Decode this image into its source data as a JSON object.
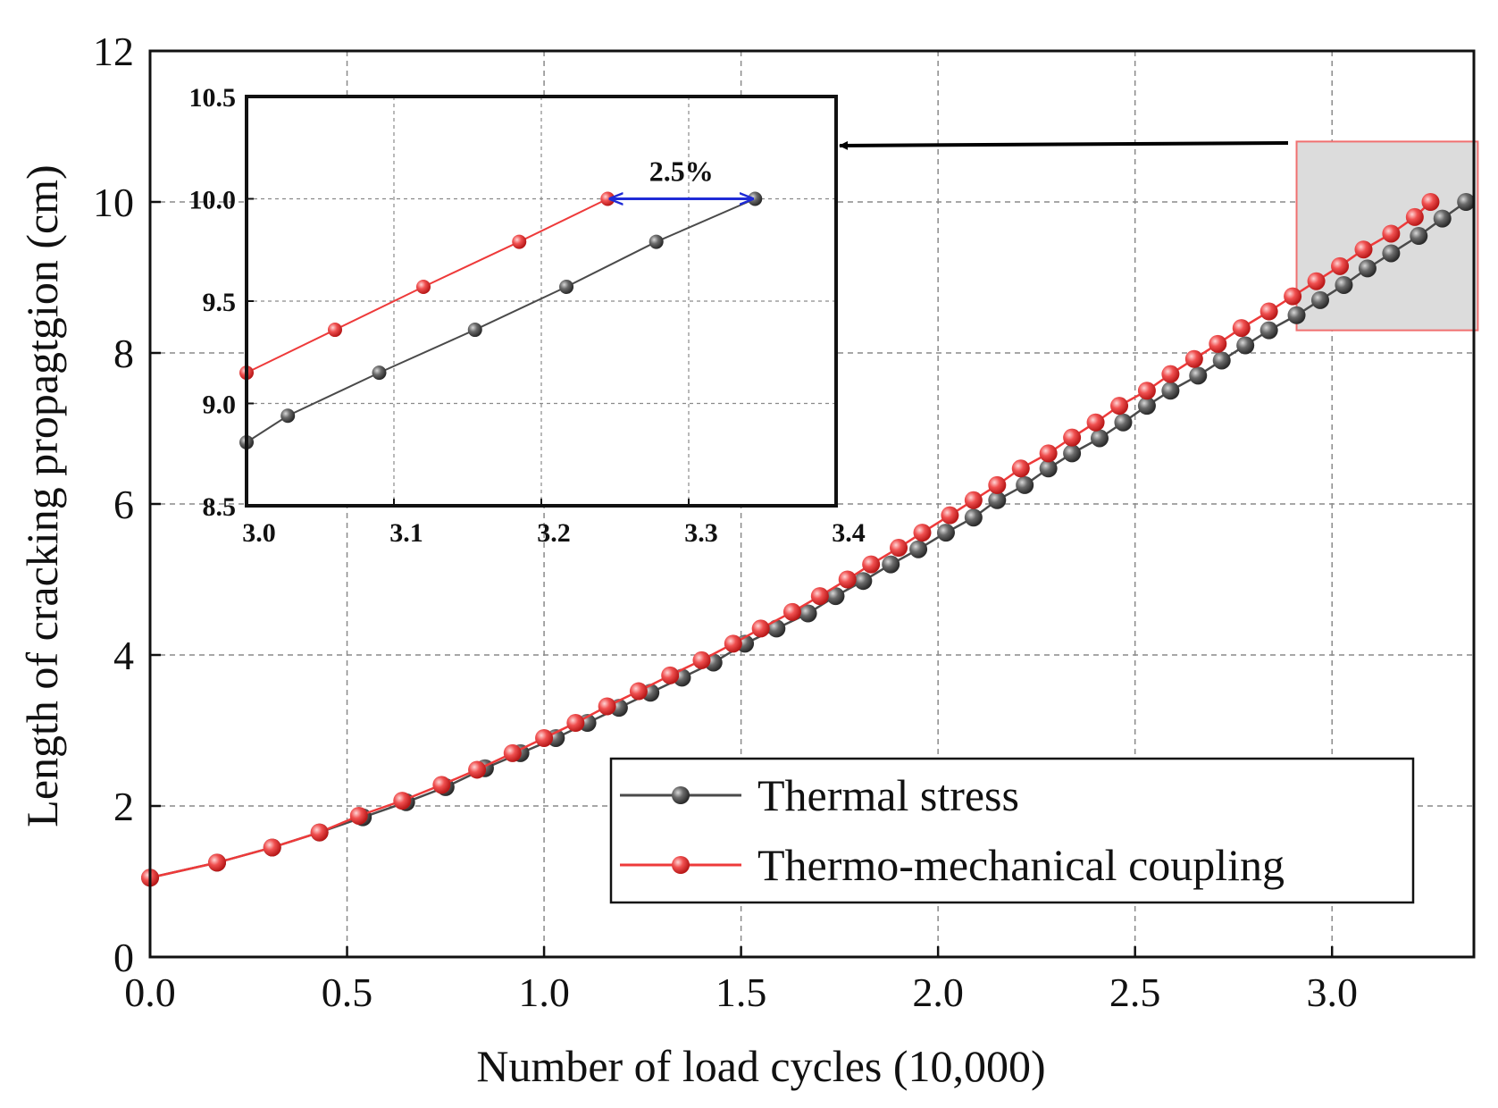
{
  "chart_data": [
    {
      "id": "main",
      "type": "line",
      "xlabel": "Number of load cycles (10,000)",
      "ylabel": "Length of cracking propagtgion (cm)",
      "xlim": [
        0,
        3.36
      ],
      "ylim": [
        0,
        12
      ],
      "xticks": [
        "0.0",
        "0.5",
        "1.0",
        "1.5",
        "2.0",
        "2.5",
        "3.0"
      ],
      "yticks": [
        "0",
        "2",
        "4",
        "6",
        "8",
        "10",
        "12"
      ],
      "grid": true,
      "legend_position": "bottom-right",
      "series": [
        {
          "name": "Thermal stress",
          "color": "#4a4a4a",
          "x": [
            0.0,
            0.17,
            0.31,
            0.43,
            0.54,
            0.65,
            0.75,
            0.85,
            0.94,
            1.03,
            1.11,
            1.19,
            1.27,
            1.35,
            1.43,
            1.51,
            1.59,
            1.67,
            1.74,
            1.81,
            1.88,
            1.95,
            2.02,
            2.09,
            2.15,
            2.22,
            2.28,
            2.34,
            2.41,
            2.47,
            2.53,
            2.59,
            2.66,
            2.72,
            2.78,
            2.84,
            2.91,
            2.97,
            3.03,
            3.09,
            3.15,
            3.22,
            3.28,
            3.34
          ],
          "y": [
            1.05,
            1.25,
            1.45,
            1.65,
            1.85,
            2.05,
            2.25,
            2.5,
            2.7,
            2.9,
            3.1,
            3.3,
            3.5,
            3.7,
            3.9,
            4.15,
            4.35,
            4.55,
            4.78,
            4.98,
            5.2,
            5.4,
            5.62,
            5.82,
            6.05,
            6.25,
            6.47,
            6.67,
            6.87,
            7.08,
            7.3,
            7.5,
            7.7,
            7.9,
            8.1,
            8.3,
            8.5,
            8.7,
            8.9,
            9.12,
            9.32,
            9.55,
            9.78,
            10.0
          ]
        },
        {
          "name": "Thermo-mechanical coupling",
          "color": "#ee3a3a",
          "x": [
            0.0,
            0.17,
            0.31,
            0.43,
            0.53,
            0.64,
            0.74,
            0.83,
            0.92,
            1.0,
            1.08,
            1.16,
            1.24,
            1.32,
            1.4,
            1.48,
            1.55,
            1.63,
            1.7,
            1.77,
            1.83,
            1.9,
            1.96,
            2.03,
            2.09,
            2.15,
            2.21,
            2.28,
            2.34,
            2.4,
            2.46,
            2.53,
            2.59,
            2.65,
            2.71,
            2.77,
            2.84,
            2.9,
            2.96,
            3.02,
            3.08,
            3.15,
            3.21,
            3.25
          ],
          "y": [
            1.05,
            1.25,
            1.45,
            1.65,
            1.87,
            2.07,
            2.28,
            2.48,
            2.7,
            2.9,
            3.1,
            3.32,
            3.52,
            3.73,
            3.93,
            4.15,
            4.35,
            4.57,
            4.78,
            5.0,
            5.2,
            5.42,
            5.62,
            5.85,
            6.05,
            6.25,
            6.47,
            6.67,
            6.88,
            7.08,
            7.3,
            7.5,
            7.72,
            7.92,
            8.12,
            8.33,
            8.55,
            8.75,
            8.95,
            9.15,
            9.37,
            9.58,
            9.8,
            10.0
          ]
        }
      ],
      "zoom_region": {
        "x": [
          2.91,
          3.37
        ],
        "y": [
          8.3,
          10.8
        ]
      }
    },
    {
      "id": "inset",
      "type": "line",
      "xlim": [
        3.0,
        3.4
      ],
      "ylim": [
        8.5,
        10.5
      ],
      "xticks": [
        "3.0",
        "3.1",
        "3.2",
        "3.3",
        "3.4"
      ],
      "yticks": [
        "8.5",
        "9.0",
        "9.5",
        "10.0",
        "10.5"
      ],
      "grid": true,
      "annotation": {
        "text": "2.5%",
        "x_from": 3.245,
        "x_to": 3.345,
        "y": 10.0,
        "color": "#1f2bd6"
      },
      "series": [
        {
          "name": "Thermal stress",
          "color": "#4a4a4a",
          "x": [
            3.0,
            3.028,
            3.09,
            3.155,
            3.217,
            3.278,
            3.345
          ],
          "y": [
            8.81,
            8.94,
            9.15,
            9.36,
            9.57,
            9.79,
            10.0
          ]
        },
        {
          "name": "Thermo-mechanical coupling",
          "color": "#ee3a3a",
          "x": [
            3.0,
            3.06,
            3.12,
            3.185,
            3.245
          ],
          "y": [
            9.15,
            9.36,
            9.57,
            9.79,
            10.0
          ]
        }
      ]
    }
  ]
}
